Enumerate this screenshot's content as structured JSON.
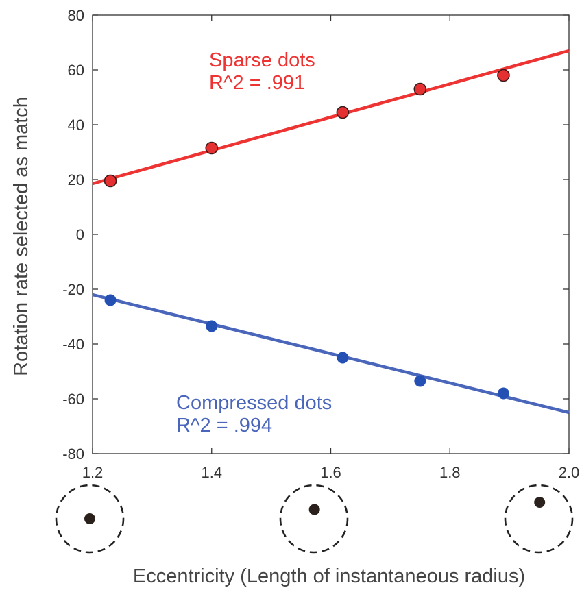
{
  "chart_data": {
    "type": "scatter",
    "title": "",
    "xlabel": "Eccentricity (Length of instantaneous radius)",
    "ylabel": "Rotation rate selected as match",
    "xlim": [
      1.2,
      2.0
    ],
    "ylim": [
      -80,
      80
    ],
    "x_ticks": [
      "1.2",
      "1.4",
      "1.6",
      "1.8",
      "2.0"
    ],
    "y_ticks": [
      "80",
      "60",
      "40",
      "20",
      "0",
      "-20",
      "-40",
      "-60",
      "-80"
    ],
    "grid": false,
    "series": [
      {
        "name": "Sparse dots",
        "annotation": "R^2 = .991",
        "color": "#ee3333",
        "marker_fill": "#e43030",
        "x": [
          1.23,
          1.4,
          1.62,
          1.75,
          1.89
        ],
        "y": [
          19.5,
          31.5,
          44.5,
          53.0,
          58.0
        ],
        "fit_line": {
          "x": [
            1.2,
            2.0
          ],
          "y": [
            18.5,
            67.0
          ]
        }
      },
      {
        "name": "Compressed dots",
        "annotation": "R^2 = .994",
        "color": "#4a66bb",
        "marker_fill": "#2450b4",
        "x": [
          1.23,
          1.4,
          1.62,
          1.75,
          1.89
        ],
        "y": [
          -24.0,
          -33.5,
          -45.0,
          -53.5,
          -58.0
        ],
        "fit_line": {
          "x": [
            1.2,
            2.0
          ],
          "y": [
            -22.0,
            -65.0
          ]
        }
      }
    ],
    "eccentricity_icons": [
      {
        "x": 1.2,
        "dot_offset": 0.0
      },
      {
        "x": 1.58,
        "dot_offset": 0.45
      },
      {
        "x": 1.96,
        "dot_offset": 0.8
      }
    ]
  }
}
